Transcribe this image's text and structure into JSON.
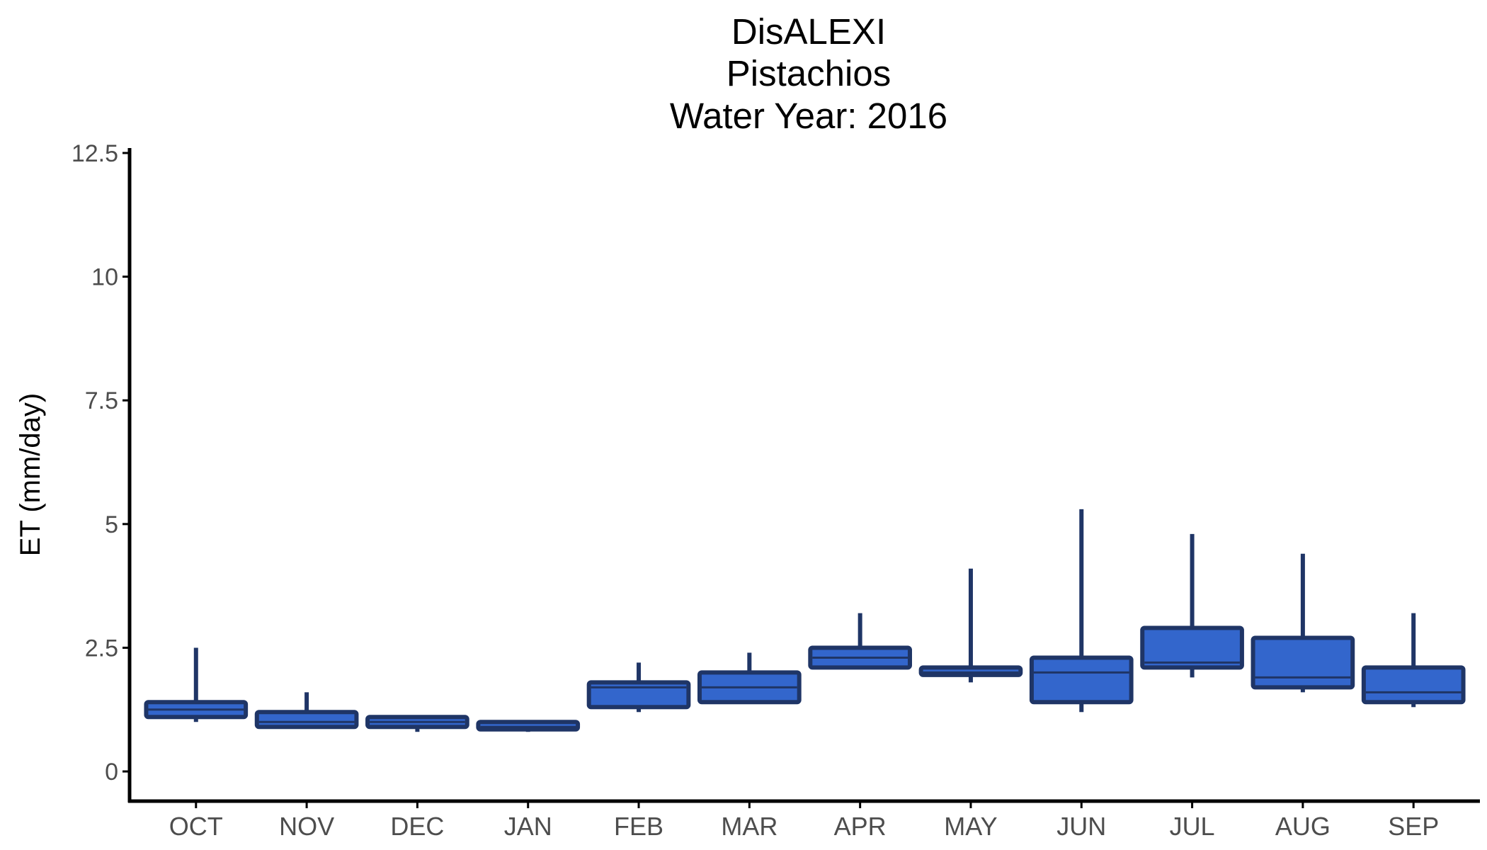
{
  "chart_data": {
    "type": "boxplot",
    "title_lines": [
      "DisALEXI",
      "Pistachios",
      "Water Year: 2016"
    ],
    "xlabel": "",
    "ylabel": "ET (mm/day)",
    "ylim": [
      -0.6,
      12.6
    ],
    "y_ticks": [
      0,
      2.5,
      5,
      7.5,
      10,
      12.5
    ],
    "y_tick_labels": [
      "0",
      "2.5",
      "5",
      "7.5",
      "10",
      "12.5"
    ],
    "categories": [
      "OCT",
      "NOV",
      "DEC",
      "JAN",
      "FEB",
      "MAR",
      "APR",
      "MAY",
      "JUN",
      "JUL",
      "AUG",
      "SEP"
    ],
    "boxes": [
      {
        "min": 1.0,
        "q1": 1.1,
        "median": 1.25,
        "q3": 1.4,
        "max": 2.5
      },
      {
        "min": 0.9,
        "q1": 0.9,
        "median": 1.0,
        "q3": 1.2,
        "max": 1.6
      },
      {
        "min": 0.8,
        "q1": 0.9,
        "median": 1.0,
        "q3": 1.1,
        "max": 1.1
      },
      {
        "min": 0.8,
        "q1": 0.85,
        "median": 0.9,
        "q3": 1.0,
        "max": 1.0
      },
      {
        "min": 1.2,
        "q1": 1.3,
        "median": 1.7,
        "q3": 1.8,
        "max": 2.2
      },
      {
        "min": 1.4,
        "q1": 1.4,
        "median": 1.7,
        "q3": 2.0,
        "max": 2.4
      },
      {
        "min": 2.1,
        "q1": 2.1,
        "median": 2.3,
        "q3": 2.5,
        "max": 3.2
      },
      {
        "min": 1.8,
        "q1": 1.95,
        "median": 2.0,
        "q3": 2.1,
        "max": 4.1
      },
      {
        "min": 1.2,
        "q1": 1.4,
        "median": 2.0,
        "q3": 2.3,
        "max": 5.3
      },
      {
        "min": 1.9,
        "q1": 2.1,
        "median": 2.2,
        "q3": 2.9,
        "max": 4.8
      },
      {
        "min": 1.6,
        "q1": 1.7,
        "median": 1.9,
        "q3": 2.7,
        "max": 4.4
      },
      {
        "min": 1.3,
        "q1": 1.4,
        "median": 1.6,
        "q3": 2.1,
        "max": 3.2
      }
    ],
    "box_fill": "#3366cc",
    "box_edge": "#1f3566",
    "axis_color": "#000000",
    "tick_label_color": "#4d4d4d",
    "grid": false,
    "legend": "none"
  }
}
